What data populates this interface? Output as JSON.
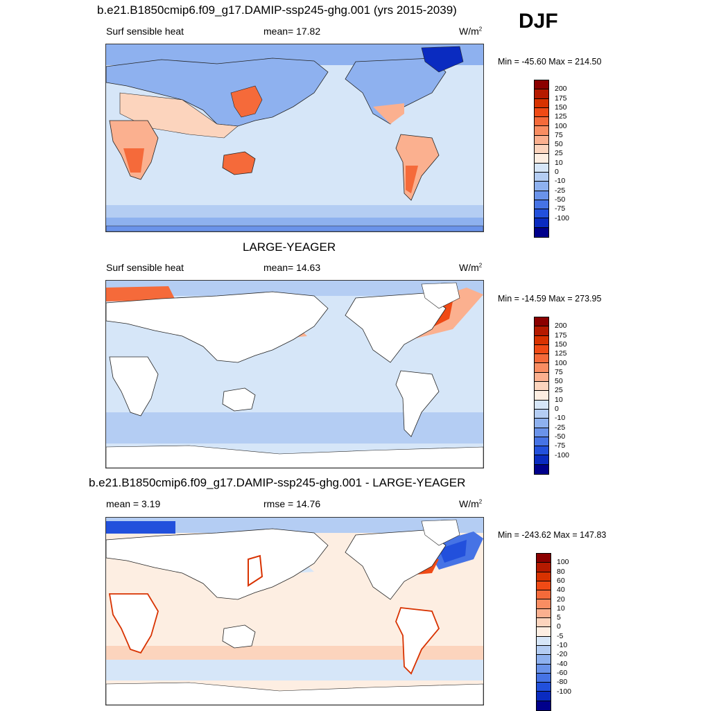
{
  "season": "DJF",
  "panels": [
    {
      "title": "b.e21.B1850cmip6.f09_g17.DAMIP-ssp245-ghg.001 (yrs 2015-2039)",
      "left_label": "Surf sensible heat",
      "center_label": "mean=  17.82",
      "units": "W/m",
      "units_sup": "2",
      "minmax": "Min = -45.60 Max = 214.50",
      "colorbar_labels": [
        "200",
        "175",
        "150",
        "125",
        "100",
        "75",
        "50",
        "25",
        "10",
        "0",
        "-10",
        "-25",
        "-50",
        "-75",
        "-100"
      ],
      "colors": [
        "#8b0000",
        "#b51a00",
        "#d83200",
        "#f04a15",
        "#f56a3a",
        "#f98d62",
        "#fbb08f",
        "#fcd4bd",
        "#fdeee2",
        "#d6e6f8",
        "#b4cdf3",
        "#8eb1ef",
        "#6a93ea",
        "#4673e5",
        "#2250dc",
        "#0a2bc0",
        "#00008b"
      ],
      "stats": {
        "mean": 17.82,
        "min": -45.6,
        "max": 214.5
      }
    },
    {
      "title": "LARGE-YEAGER",
      "left_label": "Surf sensible heat",
      "center_label": "mean=  14.63",
      "units": "W/m",
      "units_sup": "2",
      "minmax": "Min = -14.59 Max = 273.95",
      "colorbar_labels": [
        "200",
        "175",
        "150",
        "125",
        "100",
        "75",
        "50",
        "25",
        "10",
        "0",
        "-10",
        "-25",
        "-50",
        "-75",
        "-100"
      ],
      "colors": [
        "#8b0000",
        "#b51a00",
        "#d83200",
        "#f04a15",
        "#f56a3a",
        "#f98d62",
        "#fbb08f",
        "#fcd4bd",
        "#fdeee2",
        "#d6e6f8",
        "#b4cdf3",
        "#8eb1ef",
        "#6a93ea",
        "#4673e5",
        "#2250dc",
        "#0a2bc0",
        "#00008b"
      ],
      "stats": {
        "mean": 14.63,
        "min": -14.59,
        "max": 273.95
      }
    },
    {
      "title": "b.e21.B1850cmip6.f09_g17.DAMIP-ssp245-ghg.001 - LARGE-YEAGER",
      "left_label": "mean =   3.19",
      "center_label": "rmse =  14.76",
      "units": "W/m",
      "units_sup": "2",
      "minmax": "Min = -243.62 Max = 147.83",
      "colorbar_labels": [
        "100",
        "80",
        "60",
        "40",
        "20",
        "10",
        "5",
        "0",
        "-5",
        "-10",
        "-20",
        "-40",
        "-60",
        "-80",
        "-100"
      ],
      "colors": [
        "#8b0000",
        "#b51a00",
        "#d83200",
        "#f04a15",
        "#f56a3a",
        "#f98d62",
        "#fbb08f",
        "#fcd4bd",
        "#fdeee2",
        "#d6e6f8",
        "#b4cdf3",
        "#8eb1ef",
        "#6a93ea",
        "#4673e5",
        "#2250dc",
        "#0a2bc0",
        "#00008b"
      ],
      "stats": {
        "mean": 3.19,
        "rmse": 14.76,
        "min": -243.62,
        "max": 147.83
      }
    }
  ],
  "map_colors": {
    "ocean_light": "#d6e6f8",
    "ocean_mid": "#b4cdf3",
    "ocean_blue": "#8eb1ef",
    "land_warm": "#fcd4bd",
    "land_hot": "#f56a3a",
    "land_white": "#ffffff",
    "coast": "#222222"
  }
}
